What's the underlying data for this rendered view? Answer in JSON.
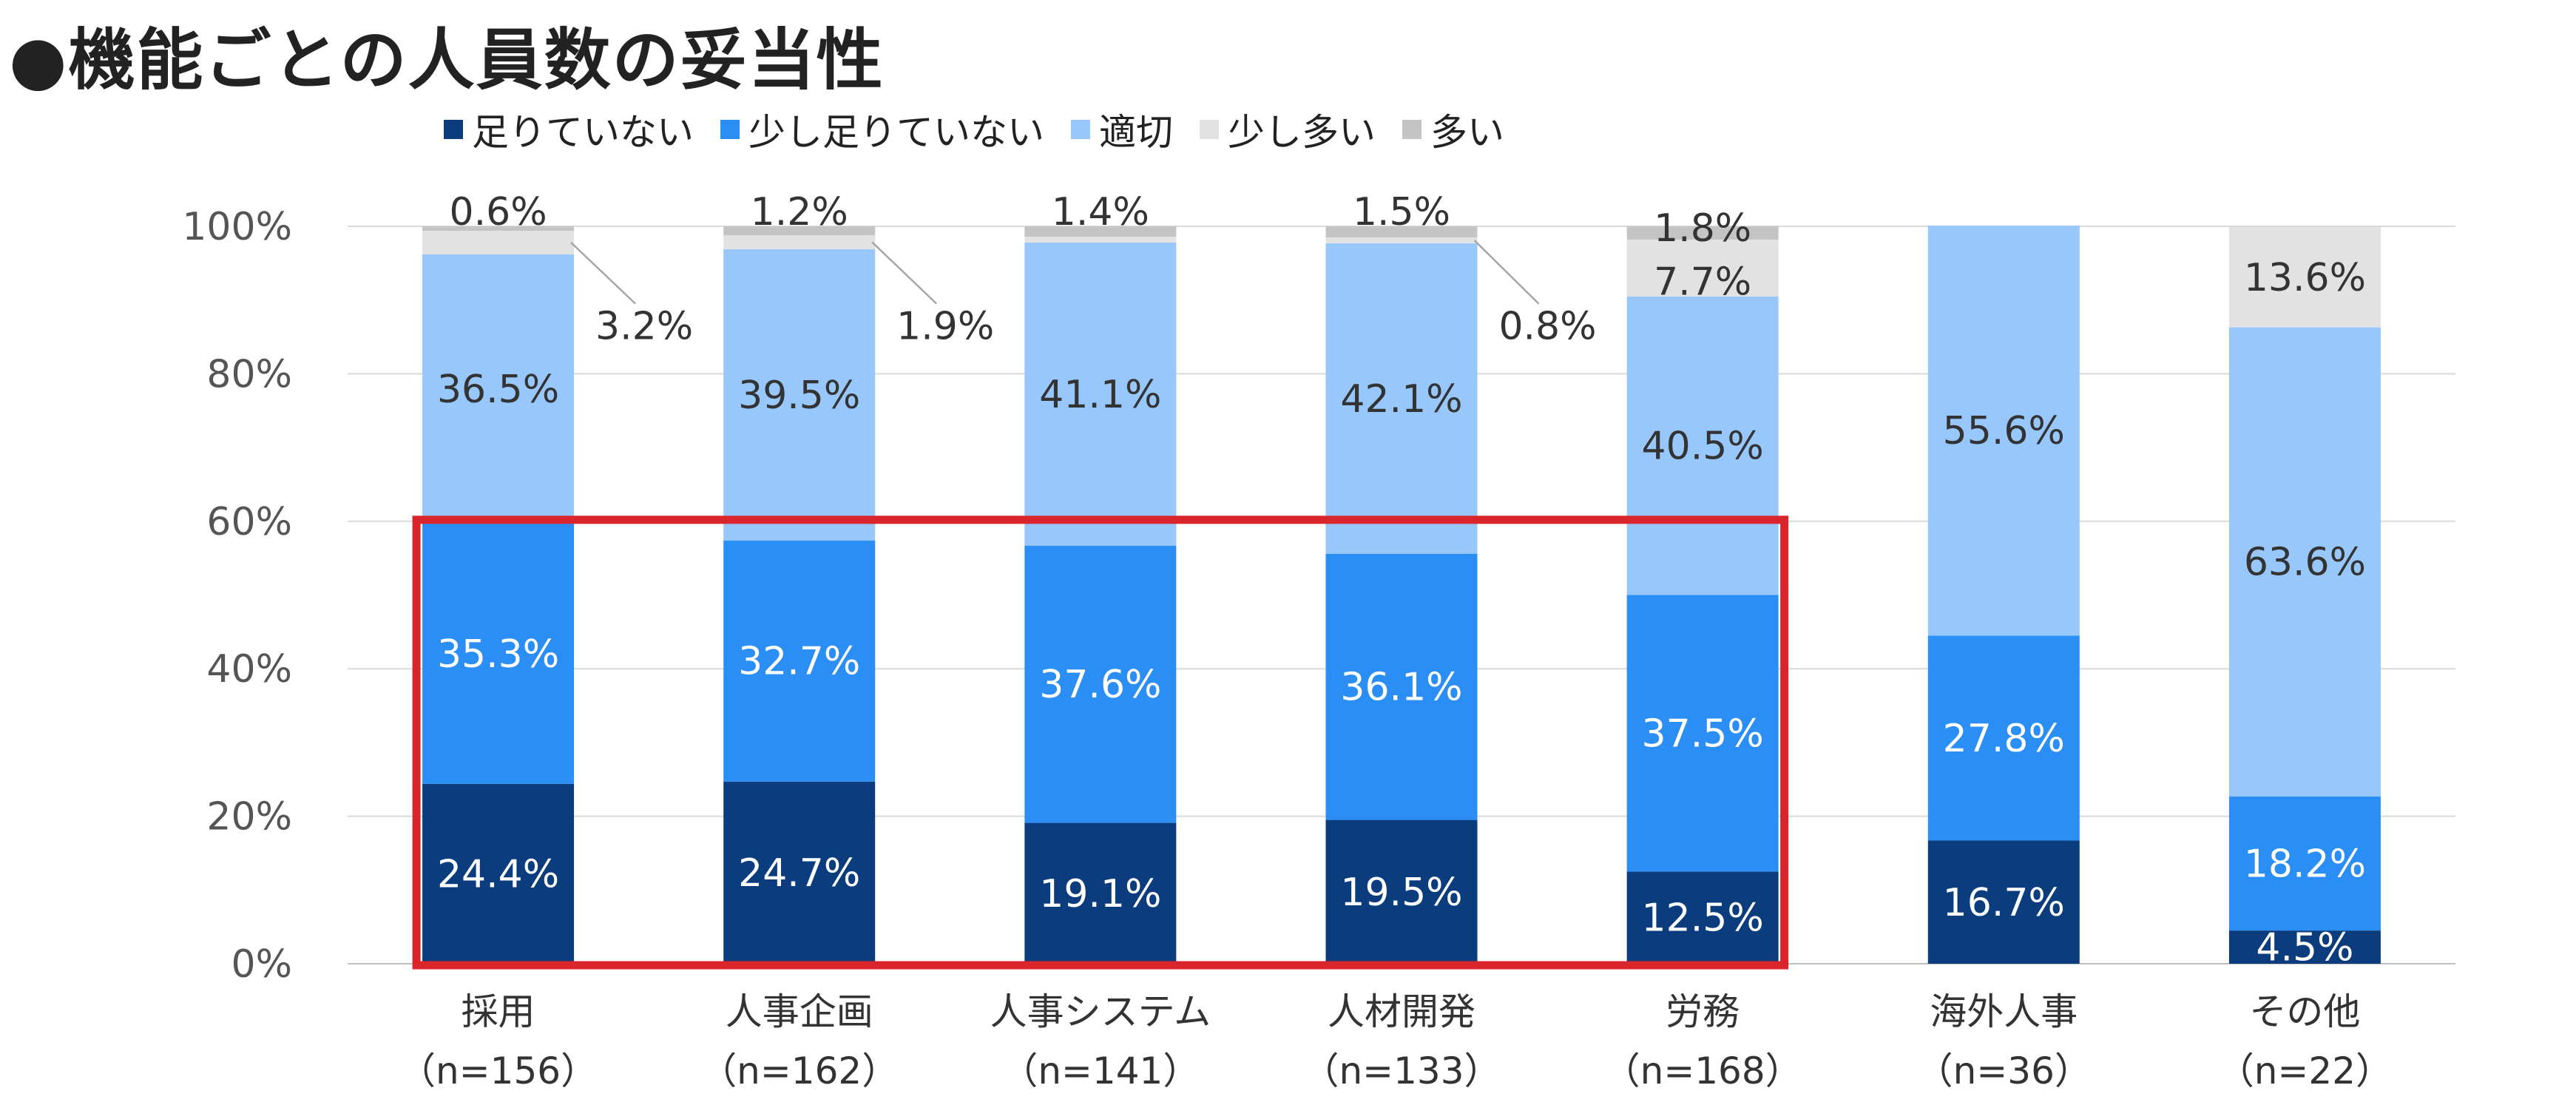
{
  "title": "●機能ごとの人員数の妥当性",
  "chart_data": {
    "type": "bar",
    "stacked": true,
    "percent": true,
    "categories": [
      "採用",
      "人事企画",
      "人事システム",
      "人材開発",
      "労務",
      "海外人事",
      "その他"
    ],
    "sublabels": [
      "（n=156）",
      "（n=162）",
      "（n=141）",
      "（n=133）",
      "（n=168）",
      "（n=36）",
      "（n=22）"
    ],
    "series": [
      {
        "name": "足りていない",
        "color": "#0b3d7e",
        "label_color": "#ffffff",
        "values": [
          24.4,
          24.7,
          19.1,
          19.5,
          12.5,
          16.7,
          4.5
        ]
      },
      {
        "name": "少し足りていない",
        "color": "#2b8ef5",
        "label_color": "#ffffff",
        "values": [
          35.3,
          32.7,
          37.6,
          36.1,
          37.5,
          27.8,
          18.2
        ]
      },
      {
        "name": "適切",
        "color": "#97c7fb",
        "label_color": "#333333",
        "values": [
          36.5,
          39.5,
          41.1,
          42.1,
          40.5,
          55.6,
          63.6
        ]
      },
      {
        "name": "少し多い",
        "color": "#e2e2e2",
        "label_color": "#333333",
        "values": [
          3.2,
          1.9,
          0.8,
          0.8,
          7.7,
          0,
          13.6
        ]
      },
      {
        "name": "多い",
        "color": "#c4c4c4",
        "label_color": "#333333",
        "values": [
          0.6,
          1.2,
          1.4,
          1.5,
          1.8,
          0,
          0
        ]
      }
    ],
    "point_labels": [
      [
        "24.4%",
        "35.3%",
        "36.5%",
        "3.2%",
        "0.6%"
      ],
      [
        "24.7%",
        "32.7%",
        "39.5%",
        "1.9%",
        "1.2%"
      ],
      [
        "19.1%",
        "37.6%",
        "41.1%",
        "",
        "1.4%"
      ],
      [
        "19.5%",
        "36.1%",
        "42.1%",
        "0.8%",
        "1.5%"
      ],
      [
        "12.5%",
        "37.5%",
        "40.5%",
        "7.7%",
        "1.8%"
      ],
      [
        "16.7%",
        "27.8%",
        "55.6%",
        "",
        ""
      ],
      [
        "4.5%",
        "18.2%",
        "63.6%",
        "13.6%",
        ""
      ]
    ],
    "y_ticks": [
      "0%",
      "20%",
      "40%",
      "60%",
      "80%",
      "100%"
    ],
    "ylim": [
      0,
      100
    ],
    "grid": true,
    "legend_position": "top",
    "highlight": {
      "from_category": "採用",
      "to_category": "労務",
      "y_range": [
        0,
        60
      ],
      "color": "#d9262c"
    }
  }
}
